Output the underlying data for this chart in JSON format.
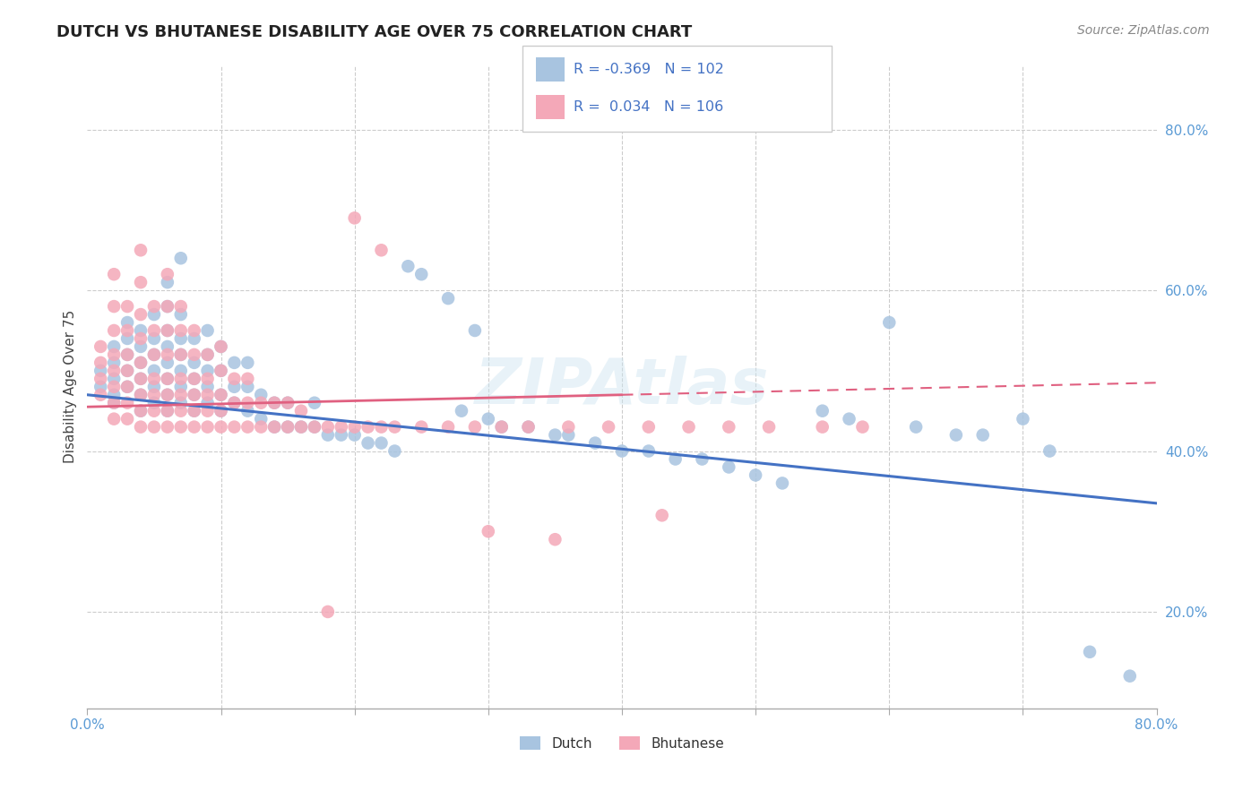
{
  "title": "DUTCH VS BHUTANESE DISABILITY AGE OVER 75 CORRELATION CHART",
  "source": "Source: ZipAtlas.com",
  "ylabel": "Disability Age Over 75",
  "xlim": [
    0.0,
    0.8
  ],
  "ylim": [
    0.08,
    0.88
  ],
  "yticks": [
    0.2,
    0.4,
    0.6,
    0.8
  ],
  "ytick_labels": [
    "20.0%",
    "40.0%",
    "60.0%",
    "80.0%"
  ],
  "xtick_labels": [
    "0.0%",
    "",
    "",
    "",
    "",
    "",
    "",
    "",
    "80.0%"
  ],
  "legend_R_dutch": "-0.369",
  "legend_N_dutch": "102",
  "legend_R_bhutanese": "0.034",
  "legend_N_bhutanese": "106",
  "dutch_color": "#a8c4e0",
  "bhutanese_color": "#f4a8b8",
  "dutch_line_color": "#4472c4",
  "bhutanese_line_color": "#e06080",
  "background_color": "#ffffff",
  "watermark": "ZIPAtlas",
  "dutch_x": [
    0.01,
    0.01,
    0.02,
    0.02,
    0.02,
    0.02,
    0.02,
    0.03,
    0.03,
    0.03,
    0.03,
    0.03,
    0.04,
    0.04,
    0.04,
    0.04,
    0.04,
    0.04,
    0.05,
    0.05,
    0.05,
    0.05,
    0.05,
    0.05,
    0.06,
    0.06,
    0.06,
    0.06,
    0.06,
    0.06,
    0.06,
    0.06,
    0.07,
    0.07,
    0.07,
    0.07,
    0.07,
    0.07,
    0.07,
    0.08,
    0.08,
    0.08,
    0.08,
    0.08,
    0.09,
    0.09,
    0.09,
    0.09,
    0.09,
    0.1,
    0.1,
    0.1,
    0.1,
    0.11,
    0.11,
    0.11,
    0.12,
    0.12,
    0.12,
    0.13,
    0.13,
    0.14,
    0.14,
    0.15,
    0.15,
    0.16,
    0.17,
    0.17,
    0.18,
    0.19,
    0.2,
    0.21,
    0.22,
    0.23,
    0.24,
    0.25,
    0.27,
    0.28,
    0.29,
    0.3,
    0.31,
    0.33,
    0.35,
    0.36,
    0.38,
    0.4,
    0.42,
    0.44,
    0.46,
    0.48,
    0.5,
    0.52,
    0.55,
    0.57,
    0.6,
    0.62,
    0.65,
    0.67,
    0.7,
    0.72,
    0.75,
    0.78
  ],
  "dutch_y": [
    0.48,
    0.5,
    0.47,
    0.49,
    0.51,
    0.53,
    0.46,
    0.48,
    0.5,
    0.52,
    0.54,
    0.56,
    0.45,
    0.47,
    0.49,
    0.51,
    0.53,
    0.55,
    0.46,
    0.48,
    0.5,
    0.52,
    0.54,
    0.57,
    0.45,
    0.47,
    0.49,
    0.51,
    0.53,
    0.55,
    0.58,
    0.61,
    0.46,
    0.48,
    0.5,
    0.52,
    0.54,
    0.57,
    0.64,
    0.45,
    0.47,
    0.49,
    0.51,
    0.54,
    0.46,
    0.48,
    0.5,
    0.52,
    0.55,
    0.45,
    0.47,
    0.5,
    0.53,
    0.46,
    0.48,
    0.51,
    0.45,
    0.48,
    0.51,
    0.44,
    0.47,
    0.43,
    0.46,
    0.43,
    0.46,
    0.43,
    0.43,
    0.46,
    0.42,
    0.42,
    0.42,
    0.41,
    0.41,
    0.4,
    0.63,
    0.62,
    0.59,
    0.45,
    0.55,
    0.44,
    0.43,
    0.43,
    0.42,
    0.42,
    0.41,
    0.4,
    0.4,
    0.39,
    0.39,
    0.38,
    0.37,
    0.36,
    0.45,
    0.44,
    0.56,
    0.43,
    0.42,
    0.42,
    0.44,
    0.4,
    0.15,
    0.12
  ],
  "bhu_x": [
    0.01,
    0.01,
    0.01,
    0.01,
    0.02,
    0.02,
    0.02,
    0.02,
    0.02,
    0.02,
    0.02,
    0.02,
    0.03,
    0.03,
    0.03,
    0.03,
    0.03,
    0.03,
    0.03,
    0.04,
    0.04,
    0.04,
    0.04,
    0.04,
    0.04,
    0.04,
    0.04,
    0.04,
    0.05,
    0.05,
    0.05,
    0.05,
    0.05,
    0.05,
    0.05,
    0.06,
    0.06,
    0.06,
    0.06,
    0.06,
    0.06,
    0.06,
    0.06,
    0.07,
    0.07,
    0.07,
    0.07,
    0.07,
    0.07,
    0.07,
    0.08,
    0.08,
    0.08,
    0.08,
    0.08,
    0.08,
    0.09,
    0.09,
    0.09,
    0.09,
    0.09,
    0.1,
    0.1,
    0.1,
    0.1,
    0.1,
    0.11,
    0.11,
    0.11,
    0.12,
    0.12,
    0.12,
    0.13,
    0.13,
    0.14,
    0.14,
    0.15,
    0.15,
    0.16,
    0.16,
    0.17,
    0.18,
    0.19,
    0.2,
    0.21,
    0.22,
    0.23,
    0.25,
    0.27,
    0.29,
    0.31,
    0.33,
    0.36,
    0.39,
    0.42,
    0.45,
    0.48,
    0.51,
    0.55,
    0.58,
    0.18,
    0.2,
    0.22,
    0.3,
    0.35,
    0.43
  ],
  "bhu_y": [
    0.47,
    0.49,
    0.51,
    0.53,
    0.44,
    0.46,
    0.48,
    0.5,
    0.52,
    0.55,
    0.58,
    0.62,
    0.44,
    0.46,
    0.48,
    0.5,
    0.52,
    0.55,
    0.58,
    0.43,
    0.45,
    0.47,
    0.49,
    0.51,
    0.54,
    0.57,
    0.61,
    0.65,
    0.43,
    0.45,
    0.47,
    0.49,
    0.52,
    0.55,
    0.58,
    0.43,
    0.45,
    0.47,
    0.49,
    0.52,
    0.55,
    0.58,
    0.62,
    0.43,
    0.45,
    0.47,
    0.49,
    0.52,
    0.55,
    0.58,
    0.43,
    0.45,
    0.47,
    0.49,
    0.52,
    0.55,
    0.43,
    0.45,
    0.47,
    0.49,
    0.52,
    0.43,
    0.45,
    0.47,
    0.5,
    0.53,
    0.43,
    0.46,
    0.49,
    0.43,
    0.46,
    0.49,
    0.43,
    0.46,
    0.43,
    0.46,
    0.43,
    0.46,
    0.43,
    0.45,
    0.43,
    0.43,
    0.43,
    0.43,
    0.43,
    0.43,
    0.43,
    0.43,
    0.43,
    0.43,
    0.43,
    0.43,
    0.43,
    0.43,
    0.43,
    0.43,
    0.43,
    0.43,
    0.43,
    0.43,
    0.2,
    0.69,
    0.65,
    0.3,
    0.29,
    0.32
  ],
  "dutch_trendline": [
    0.0,
    0.8,
    0.47,
    0.335
  ],
  "bhu_trendline_solid": [
    0.0,
    0.4,
    0.455,
    0.47
  ],
  "bhu_trendline_dashed": [
    0.4,
    0.8,
    0.47,
    0.485
  ]
}
